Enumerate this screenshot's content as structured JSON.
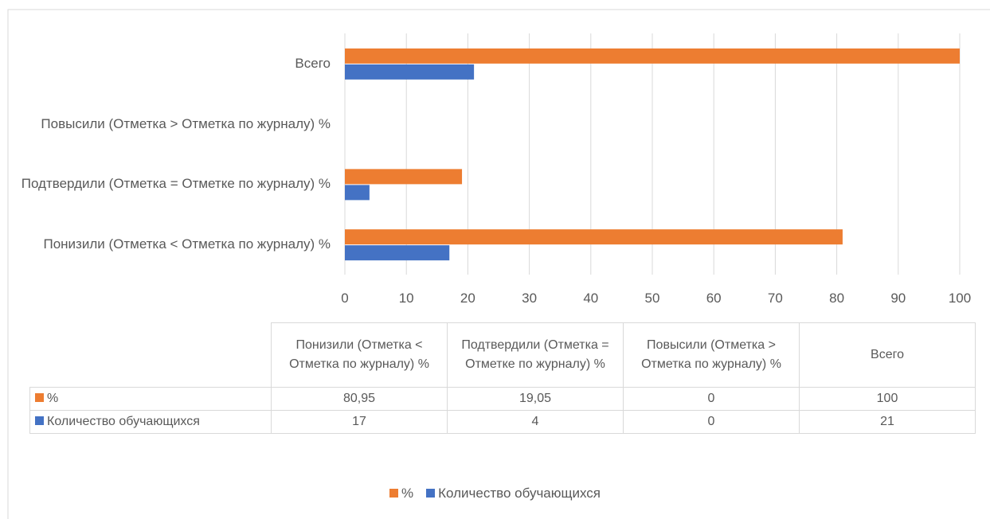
{
  "chart_data": {
    "type": "bar",
    "orientation": "horizontal",
    "categories": [
      "Понизили (Отметка < Отметка по журналу) %",
      "Подтвердили (Отметка = Отметке по журналу) %",
      "Повысили (Отметка > Отметка по журналу) %",
      "Всего"
    ],
    "series": [
      {
        "name": "%",
        "color": "#ed7d31",
        "values": [
          80.95,
          19.05,
          0,
          100
        ],
        "value_labels": [
          "80,95",
          "19,05",
          "0",
          "100"
        ]
      },
      {
        "name": "Количество обучающихся",
        "color": "#4472c4",
        "values": [
          17,
          4,
          0,
          21
        ]
      }
    ],
    "xlim": [
      0,
      100
    ],
    "xticks": [
      0,
      10,
      20,
      30,
      40,
      50,
      60,
      70,
      80,
      90,
      100
    ],
    "grid": true,
    "legend": "bottom",
    "data_table": true
  }
}
